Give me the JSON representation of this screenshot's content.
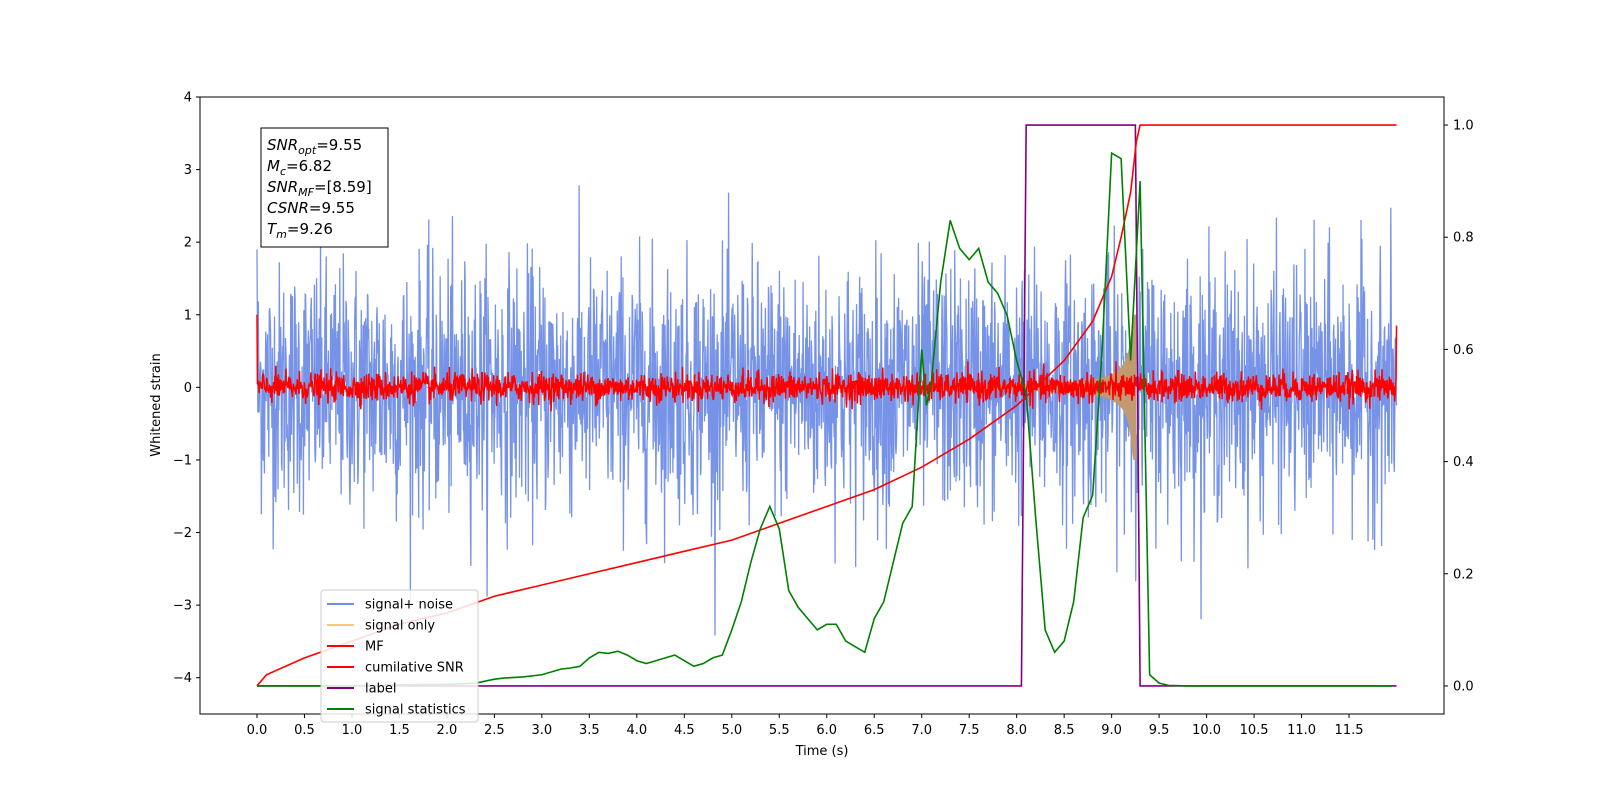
{
  "chart_data": {
    "type": "line",
    "xlabel": "Time (s)",
    "ylabel": "Whitened strain",
    "xlim": [
      -0.6,
      12.5
    ],
    "ylim": [
      -4.5,
      4.0
    ],
    "y2lim": [
      -0.05,
      1.05
    ],
    "x_ticks": [
      0.0,
      0.5,
      1.0,
      1.5,
      2.0,
      2.5,
      3.0,
      3.5,
      4.0,
      4.5,
      5.0,
      5.5,
      6.0,
      6.5,
      7.0,
      7.5,
      8.0,
      8.5,
      9.0,
      9.5,
      10.0,
      10.5,
      11.0,
      11.5
    ],
    "x_tick_labels": [
      "0.0",
      "0.5",
      "1.0",
      "1.5",
      "2.0",
      "2.5",
      "3.0",
      "3.5",
      "4.0",
      "4.5",
      "5.0",
      "5.5",
      "6.0",
      "6.5",
      "7.0",
      "7.5",
      "8.0",
      "8.5",
      "9.0",
      "9.5",
      "10.0",
      "10.5",
      "11.0",
      "11.5"
    ],
    "y_ticks": [
      -4,
      -3,
      -2,
      -1,
      0,
      1,
      2,
      3,
      4
    ],
    "y_tick_labels": [
      "−4",
      "−3",
      "−2",
      "−1",
      "0",
      "1",
      "2",
      "3",
      "4"
    ],
    "y2_ticks": [
      0.0,
      0.2,
      0.4,
      0.6,
      0.8,
      1.0
    ],
    "y2_tick_labels": [
      "0.0",
      "0.2",
      "0.4",
      "0.6",
      "0.8",
      "1.0"
    ],
    "grid": false,
    "legend_position": "lower-left",
    "series": [
      {
        "name": "signal+ noise",
        "axis": "left",
        "color": "#6f8de6",
        "kind": "noise",
        "x_start": 0.0,
        "x_end": 12.0,
        "amplitude_std": 0.85,
        "signal_envelope_peak": 1.0
      },
      {
        "name": "signal only",
        "axis": "left",
        "color": "#f5c97a",
        "kind": "chirp",
        "x_start": 0.0,
        "x_end": 9.26,
        "amplitude_peak": 1.0
      },
      {
        "name": "MF",
        "axis": "left",
        "color": "#ff0000",
        "kind": "noise",
        "x_start": 0.0,
        "x_end": 12.0,
        "amplitude_std": 0.1
      },
      {
        "name": "cumilative SNR",
        "axis": "right",
        "color": "#ff0000",
        "kind": "line",
        "x": [
          0.0,
          0.1,
          0.5,
          1.0,
          1.5,
          2.0,
          2.5,
          3.0,
          3.5,
          4.0,
          4.5,
          5.0,
          5.5,
          6.0,
          6.5,
          7.0,
          7.5,
          8.0,
          8.5,
          8.8,
          9.0,
          9.1,
          9.2,
          9.26,
          9.3,
          10.0,
          11.0,
          12.0
        ],
        "y": [
          0.0,
          0.02,
          0.05,
          0.08,
          0.11,
          0.13,
          0.16,
          0.18,
          0.2,
          0.22,
          0.24,
          0.26,
          0.29,
          0.32,
          0.35,
          0.39,
          0.44,
          0.5,
          0.58,
          0.65,
          0.73,
          0.8,
          0.88,
          0.97,
          1.0,
          1.0,
          1.0,
          1.0
        ]
      },
      {
        "name": "label",
        "axis": "right",
        "color": "#800080",
        "kind": "line",
        "x": [
          0.0,
          8.05,
          8.1,
          9.25,
          9.3,
          12.0
        ],
        "y": [
          0.0,
          0.0,
          1.0,
          1.0,
          0.0,
          0.0
        ]
      },
      {
        "name": "signal statistics",
        "axis": "right",
        "color": "#008000",
        "kind": "line",
        "x": [
          0.0,
          0.5,
          1.0,
          1.5,
          2.0,
          2.3,
          2.5,
          2.6,
          2.8,
          3.0,
          3.2,
          3.3,
          3.4,
          3.5,
          3.6,
          3.7,
          3.8,
          3.9,
          4.0,
          4.1,
          4.2,
          4.3,
          4.4,
          4.5,
          4.6,
          4.7,
          4.8,
          4.9,
          5.0,
          5.1,
          5.2,
          5.3,
          5.4,
          5.5,
          5.6,
          5.7,
          5.8,
          5.9,
          6.0,
          6.1,
          6.2,
          6.3,
          6.4,
          6.5,
          6.6,
          6.7,
          6.8,
          6.9,
          7.0,
          7.05,
          7.1,
          7.2,
          7.3,
          7.4,
          7.5,
          7.6,
          7.7,
          7.8,
          7.9,
          8.0,
          8.1,
          8.2,
          8.3,
          8.4,
          8.5,
          8.6,
          8.7,
          8.8,
          8.9,
          9.0,
          9.1,
          9.2,
          9.3,
          9.4,
          9.5,
          9.6,
          9.8,
          10.0,
          10.5,
          11.0,
          11.5,
          11.95
        ],
        "y": [
          0.0,
          0.0,
          0.0,
          0.002,
          0.003,
          0.005,
          0.012,
          0.014,
          0.016,
          0.02,
          0.03,
          0.032,
          0.035,
          0.05,
          0.06,
          0.058,
          0.062,
          0.055,
          0.045,
          0.04,
          0.045,
          0.05,
          0.055,
          0.045,
          0.035,
          0.04,
          0.05,
          0.055,
          0.1,
          0.15,
          0.22,
          0.28,
          0.32,
          0.28,
          0.17,
          0.14,
          0.12,
          0.1,
          0.11,
          0.11,
          0.08,
          0.07,
          0.06,
          0.12,
          0.15,
          0.22,
          0.29,
          0.32,
          0.6,
          0.5,
          0.54,
          0.72,
          0.83,
          0.78,
          0.76,
          0.78,
          0.72,
          0.7,
          0.66,
          0.58,
          0.52,
          0.3,
          0.1,
          0.06,
          0.08,
          0.15,
          0.3,
          0.34,
          0.6,
          0.95,
          0.94,
          0.58,
          0.9,
          0.02,
          0.005,
          0.001,
          0.0,
          0.0,
          0.0,
          0.0,
          0.0,
          0.0
        ]
      }
    ],
    "annotation": {
      "lines": [
        {
          "label_main": "SNR",
          "label_sub": "opt",
          "italic": true,
          "value": "=9.55"
        },
        {
          "label_main": "M",
          "label_sub": "c",
          "italic": true,
          "value": "=6.82"
        },
        {
          "label_main": "SNR",
          "label_sub": "MF",
          "italic": true,
          "value": "=[8.59]"
        },
        {
          "label_main": "CSNR",
          "label_sub": "",
          "italic": true,
          "value": "=9.55"
        },
        {
          "label_main": "T",
          "label_sub": "m",
          "italic": true,
          "value": "=9.26"
        }
      ]
    }
  }
}
